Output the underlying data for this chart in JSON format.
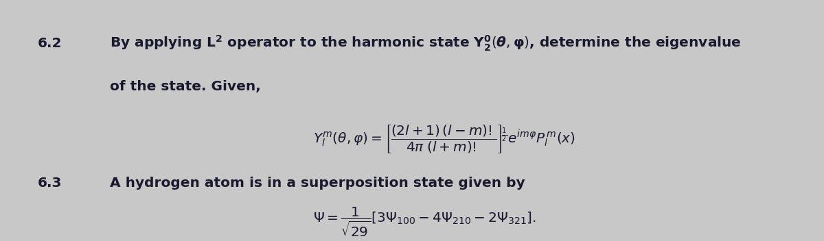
{
  "background_color": "#c8c8c8",
  "fig_width": 12.0,
  "fig_height": 3.52,
  "dpi": 100,
  "section_62_label": "6.2",
  "section_63_label": "6.3",
  "text_color": "#1a1a2e",
  "label_color": "#1a1a2e",
  "font_size_main": 14.5,
  "font_size_formula": 14.5
}
